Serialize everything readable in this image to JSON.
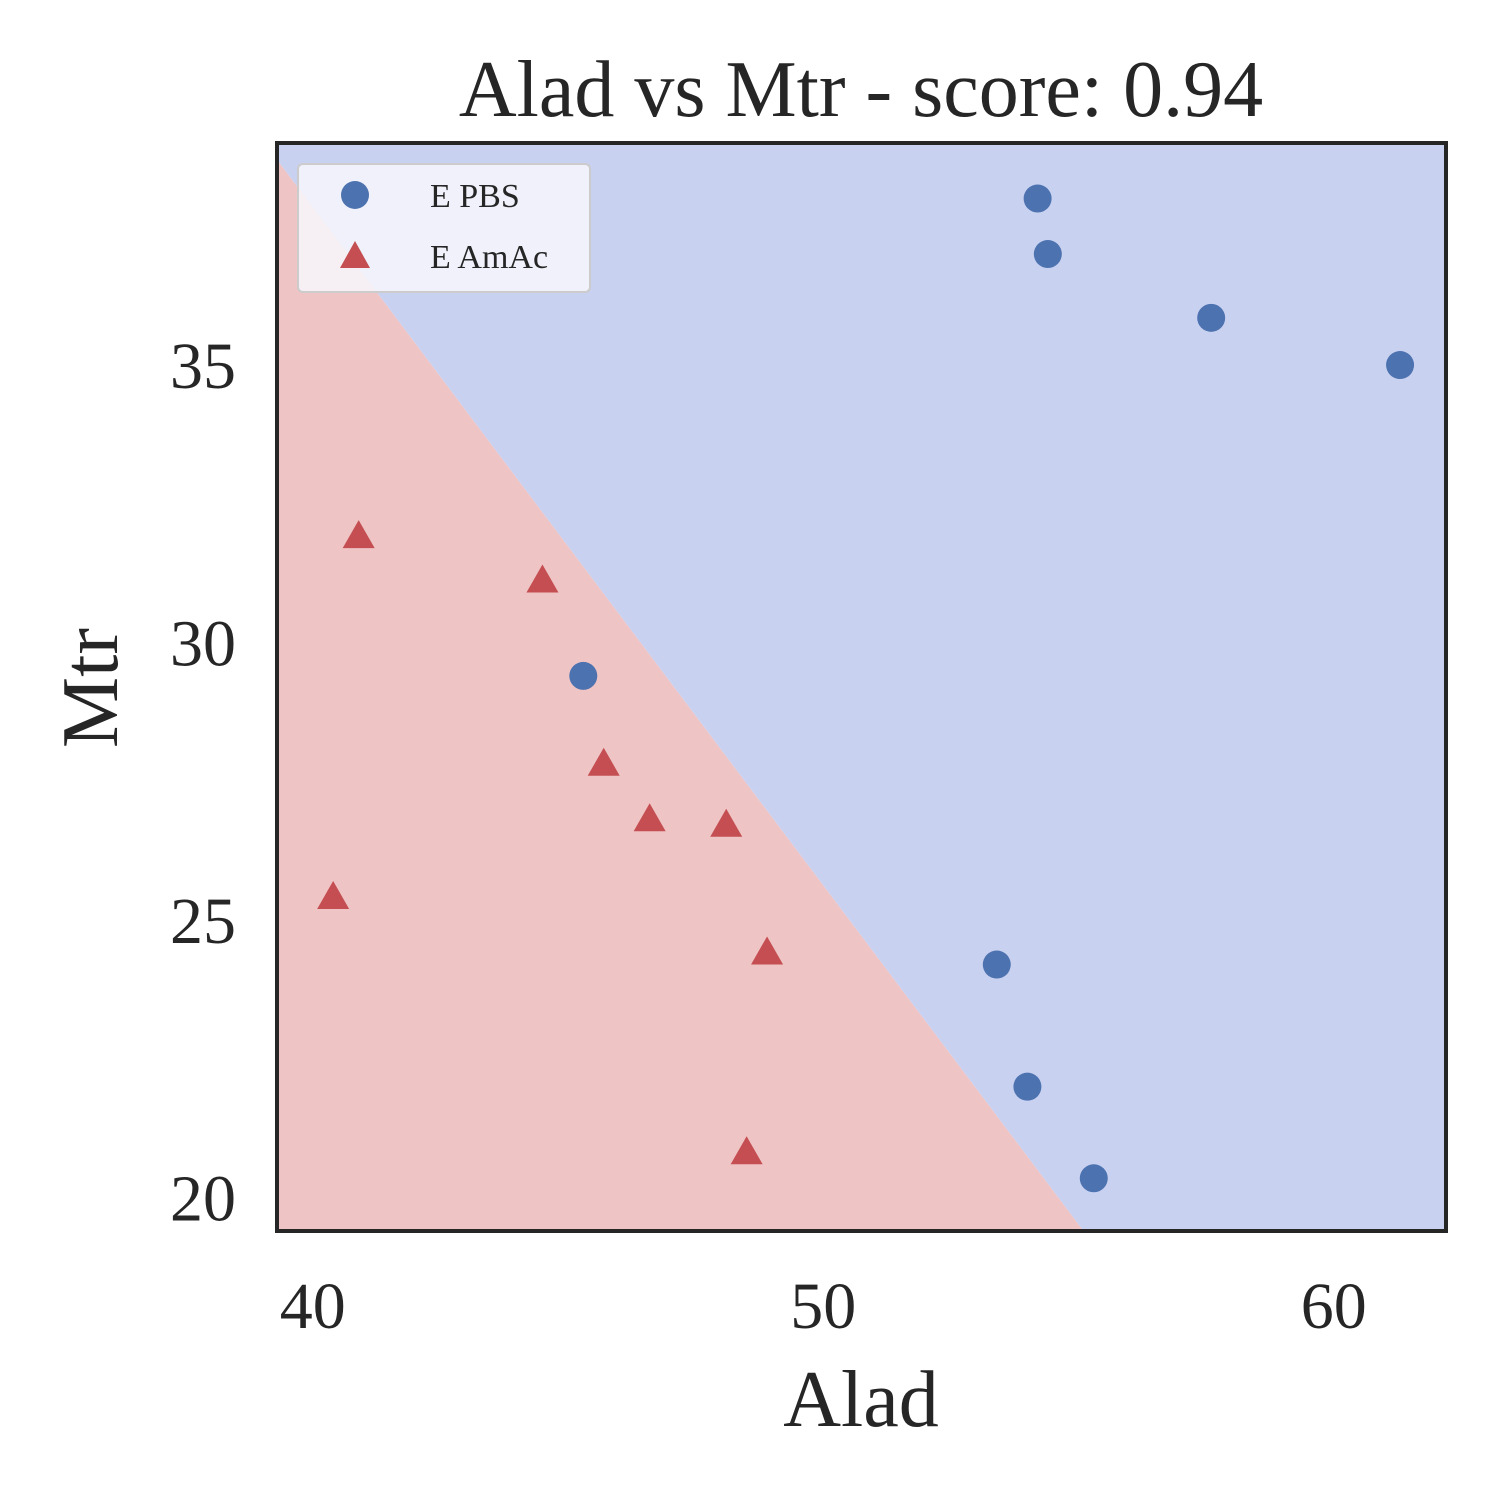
{
  "chart_data": {
    "type": "scatter",
    "title": "Alad vs Mtr - score: 0.94",
    "xlabel": "Alad",
    "ylabel": "Mtr",
    "xlim": [
      39.3,
      62.2
    ],
    "ylim": [
      19.4,
      39.0
    ],
    "xticks": [
      40,
      50,
      60
    ],
    "yticks": [
      20,
      25,
      30,
      35
    ],
    "grid": false,
    "legend_position": "upper-left",
    "decision_boundary": {
      "points": [
        [
          39.3,
          38.7
        ],
        [
          55.1,
          19.4
        ]
      ],
      "region_below_label": "E AmAc",
      "region_above_label": "E PBS",
      "colors": {
        "below": "#efc4c4",
        "above": "#c9d1f1"
      }
    },
    "series": [
      {
        "name": "E PBS",
        "marker": "circle",
        "color": "#4c72b0",
        "points": [
          [
            54.2,
            38.0
          ],
          [
            54.4,
            37.0
          ],
          [
            57.6,
            35.85
          ],
          [
            61.3,
            35.0
          ],
          [
            45.3,
            29.4
          ],
          [
            53.4,
            24.2
          ],
          [
            54.0,
            22.0
          ],
          [
            55.3,
            20.35
          ]
        ]
      },
      {
        "name": "E AmAc",
        "marker": "triangle",
        "color": "#c44e52",
        "points": [
          [
            40.9,
            31.9
          ],
          [
            44.5,
            31.1
          ],
          [
            45.7,
            27.8
          ],
          [
            46.6,
            26.8
          ],
          [
            48.1,
            26.7
          ],
          [
            48.9,
            24.4
          ],
          [
            40.4,
            25.4
          ],
          [
            48.5,
            20.8
          ]
        ]
      }
    ]
  }
}
